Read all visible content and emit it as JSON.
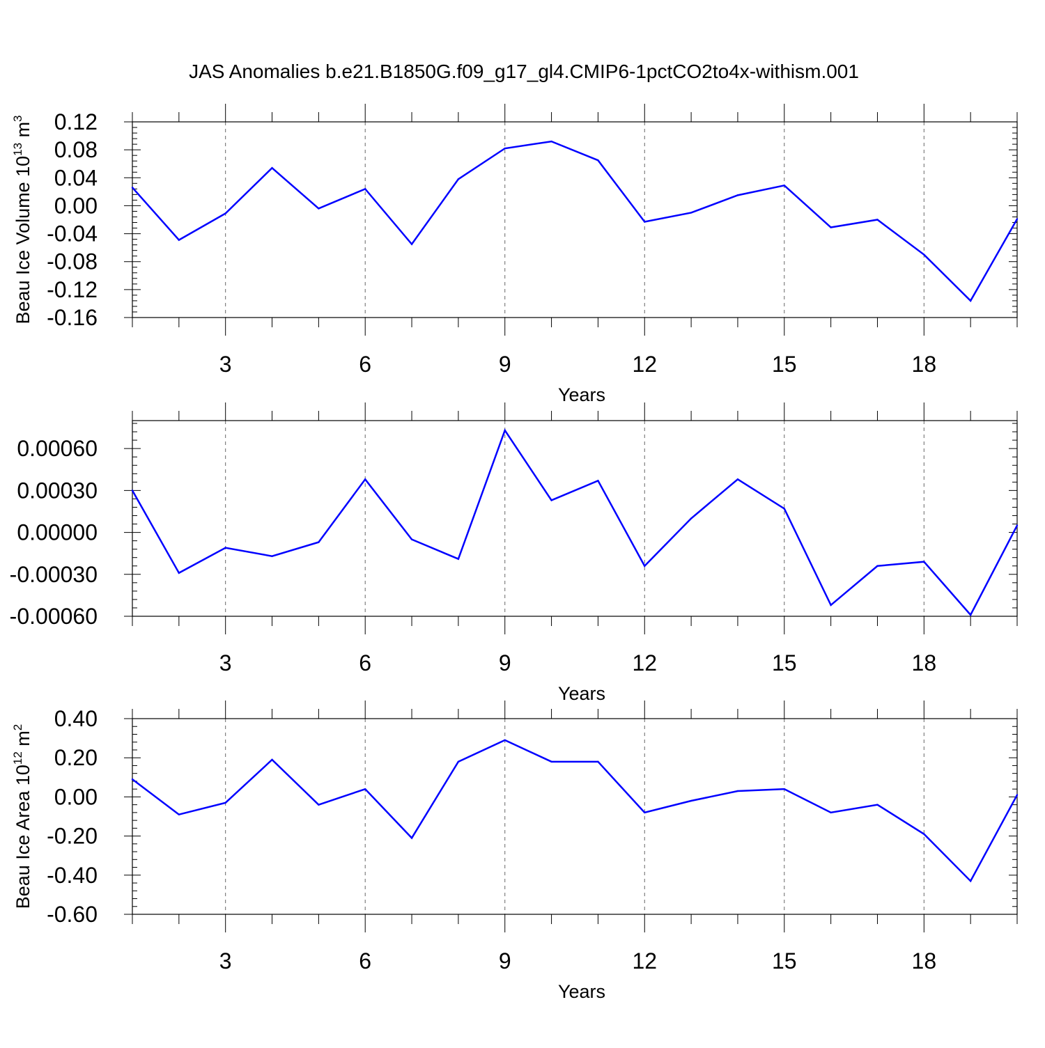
{
  "title": "JAS Anomalies b.e21.B1850G.f09_g17_gl4.CMIP6-1pctCO2to4x-withism.001",
  "colors": {
    "line": "#0000ff",
    "axis": "#000000",
    "grid": "#666666"
  },
  "chart_data": [
    {
      "type": "line",
      "title": "",
      "xlabel": "Years",
      "ylabel": "Beau Ice Volume 10",
      "ylabel_sup": "13",
      "ylabel_unit": " m",
      "ylabel_unit_sup": "3",
      "xlim": [
        1,
        20
      ],
      "ylim": [
        -0.16,
        0.12
      ],
      "grid_x": true,
      "xticks": [
        3,
        6,
        9,
        12,
        15,
        18
      ],
      "xtick_labels": [
        "3",
        "6",
        "9",
        "12",
        "15",
        "18"
      ],
      "yticks": [
        0.12,
        0.08,
        0.04,
        0.0,
        -0.04,
        -0.08,
        -0.12,
        -0.16
      ],
      "ytick_labels": [
        "0.12",
        "0.08",
        "0.04",
        "0.00",
        "-0.04",
        "-0.08",
        "-0.12",
        "-0.16"
      ],
      "x": [
        1,
        2,
        3,
        4,
        5,
        6,
        7,
        8,
        9,
        10,
        11,
        12,
        13,
        14,
        15,
        16,
        17,
        18,
        19,
        20
      ],
      "series": [
        {
          "values": [
            0.026,
            -0.049,
            -0.011,
            0.054,
            -0.004,
            0.024,
            -0.055,
            0.038,
            0.082,
            0.092,
            0.065,
            -0.023,
            -0.01,
            0.015,
            0.029,
            -0.031,
            -0.02,
            -0.07,
            -0.136,
            -0.019
          ]
        }
      ]
    },
    {
      "type": "line",
      "title": "",
      "xlabel": "Years",
      "ylabel": "",
      "xlim": [
        1,
        20
      ],
      "ylim": [
        -0.0006,
        0.0008
      ],
      "grid_x": true,
      "xticks": [
        3,
        6,
        9,
        12,
        15,
        18
      ],
      "xtick_labels": [
        "3",
        "6",
        "9",
        "12",
        "15",
        "18"
      ],
      "yticks": [
        0.0006,
        0.0003,
        0.0,
        -0.0003,
        -0.0006
      ],
      "ytick_labels": [
        "0.00060",
        "0.00030",
        "0.00000",
        "-0.00030",
        "-0.00060"
      ],
      "x": [
        1,
        2,
        3,
        4,
        5,
        6,
        7,
        8,
        9,
        10,
        11,
        12,
        13,
        14,
        15,
        16,
        17,
        18,
        19,
        20
      ],
      "series": [
        {
          "values": [
            0.0003,
            -0.00029,
            -0.00011,
            -0.00017,
            -7e-05,
            0.00038,
            -5e-05,
            -0.00019,
            0.00073,
            0.00023,
            0.00037,
            -0.00024,
            0.0001,
            0.00038,
            0.00017,
            -0.00052,
            -0.00024,
            -0.00021,
            -0.00059,
            5e-05
          ]
        }
      ]
    },
    {
      "type": "line",
      "title": "",
      "xlabel": "Years",
      "ylabel": "Beau Ice Area 10",
      "ylabel_sup": "12",
      "ylabel_unit": " m",
      "ylabel_unit_sup": "2",
      "xlim": [
        1,
        20
      ],
      "ylim": [
        -0.6,
        0.4
      ],
      "grid_x": true,
      "xticks": [
        3,
        6,
        9,
        12,
        15,
        18
      ],
      "xtick_labels": [
        "3",
        "6",
        "9",
        "12",
        "15",
        "18"
      ],
      "yticks": [
        0.4,
        0.2,
        0.0,
        -0.2,
        -0.4,
        -0.6
      ],
      "ytick_labels": [
        "0.40",
        "0.20",
        "0.00",
        "-0.20",
        "-0.40",
        "-0.60"
      ],
      "x": [
        1,
        2,
        3,
        4,
        5,
        6,
        7,
        8,
        9,
        10,
        11,
        12,
        13,
        14,
        15,
        16,
        17,
        18,
        19,
        20
      ],
      "series": [
        {
          "values": [
            0.09,
            -0.09,
            -0.03,
            0.19,
            -0.04,
            0.04,
            -0.21,
            0.18,
            0.29,
            0.18,
            0.18,
            -0.08,
            -0.02,
            0.03,
            0.04,
            -0.08,
            -0.04,
            -0.19,
            -0.43,
            0.01
          ]
        }
      ]
    }
  ]
}
